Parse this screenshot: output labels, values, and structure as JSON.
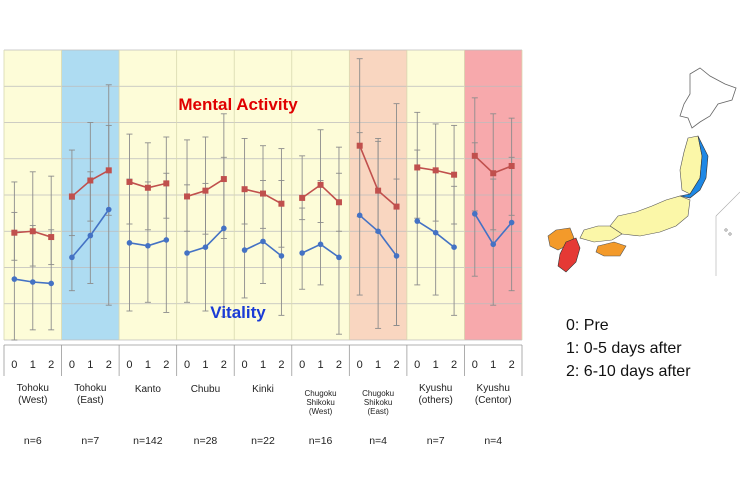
{
  "chart_data": {
    "type": "line",
    "ylim": [
      0,
      100
    ],
    "x_ticks": [
      "0",
      "1",
      "2"
    ],
    "series": [
      {
        "name": "Mental Activity",
        "color": "#c0504d"
      },
      {
        "name": "Vitality",
        "color": "#4472c4"
      }
    ],
    "regions": [
      {
        "label": "Tohoku (West)",
        "n": "n=6",
        "bg": "#fdfcd8",
        "mental": [
          37.0,
          37.5,
          35.5
        ],
        "mental_err": [
          [
            27.5,
            54.5
          ],
          [
            25.5,
            58.0
          ],
          [
            26.0,
            56.5
          ]
        ],
        "vitality": [
          21.0,
          20.0,
          19.5
        ],
        "vitality_err": [
          [
            0,
            44.0
          ],
          [
            3.5,
            39.5
          ],
          [
            3.5,
            38.0
          ]
        ]
      },
      {
        "label": "Tohoku (East)",
        "n": "n=7",
        "bg": "#aedcf2",
        "mental": [
          49.5,
          55.0,
          58.5
        ],
        "mental_err": [
          [
            36.0,
            65.5
          ],
          [
            41.0,
            75.0
          ],
          [
            43.0,
            88.0
          ]
        ],
        "vitality": [
          28.5,
          36.0,
          45.0
        ],
        "vitality_err": [
          [
            17.0,
            48.5
          ],
          [
            19.5,
            58.0
          ],
          [
            12.0,
            74.0
          ]
        ]
      },
      {
        "label": "Kanto",
        "n": "n=142",
        "bg": "#fdfcd8",
        "mental": [
          54.5,
          52.5,
          54.0
        ],
        "mental_err": [
          [
            40.0,
            71.0
          ],
          [
            38.0,
            68.0
          ],
          [
            42.0,
            70.0
          ]
        ],
        "vitality": [
          33.5,
          32.5,
          34.5
        ],
        "vitality_err": [
          [
            10.0,
            55.5
          ],
          [
            13.0,
            54.5
          ],
          [
            9.5,
            57.5
          ]
        ]
      },
      {
        "label": "Chubu",
        "n": "n=28",
        "bg": "#fdfcd8",
        "mental": [
          49.5,
          51.5,
          55.5
        ],
        "mental_err": [
          [
            37.5,
            69.0
          ],
          [
            36.5,
            70.0
          ],
          [
            35.0,
            78.0
          ]
        ],
        "vitality": [
          30.0,
          32.0,
          38.5
        ],
        "vitality_err": [
          [
            13.0,
            53.5
          ],
          [
            10.0,
            54.0
          ],
          [
            8.0,
            63.0
          ]
        ]
      },
      {
        "label": "Kinki",
        "n": "n=22",
        "bg": "#fdfcd8",
        "mental": [
          52.0,
          50.5,
          47.0
        ],
        "mental_err": [
          [
            40.0,
            69.5
          ],
          [
            38.5,
            67.0
          ],
          [
            32.0,
            66.0
          ]
        ],
        "vitality": [
          31.0,
          34.0,
          29.0
        ],
        "vitality_err": [
          [
            14.5,
            51.5
          ],
          [
            19.5,
            55.0
          ],
          [
            8.5,
            55.0
          ]
        ]
      },
      {
        "label": "Chugoku Shikoku (West)",
        "n": "n=16",
        "bg": "#fdfcd8",
        "mental": [
          49.0,
          53.5,
          47.5
        ],
        "mental_err": [
          [
            41.5,
            63.5
          ],
          [
            40.5,
            72.5
          ],
          [
            37.5,
            66.5
          ]
        ],
        "vitality": [
          30.0,
          33.0,
          28.5
        ],
        "vitality_err": [
          [
            17.5,
            45.5
          ],
          [
            19.0,
            55.0
          ],
          [
            2.0,
            57.5
          ]
        ]
      },
      {
        "label": "Chugoku Shikoku (East)",
        "n": "n=4",
        "bg": "#f9d6c0",
        "mental": [
          67.0,
          51.5,
          46.0
        ],
        "mental_err": [
          [
            42.5,
            97.0
          ],
          [
            37.0,
            69.5
          ],
          [
            5.0,
            81.5
          ]
        ],
        "vitality": [
          43.0,
          37.5,
          29.0
        ],
        "vitality_err": [
          [
            15.5,
            71.5
          ],
          [
            4.0,
            68.5
          ],
          [
            5.0,
            55.5
          ]
        ]
      },
      {
        "label": "Kyushu (others)",
        "n": "n=7",
        "bg": "#fdfcd8",
        "mental": [
          59.5,
          58.5,
          57.0
        ],
        "mental_err": [
          [
            42.0,
            78.5
          ],
          [
            41.0,
            74.5
          ],
          [
            40.0,
            74.0
          ]
        ],
        "vitality": [
          41.0,
          37.0,
          32.0
        ],
        "vitality_err": [
          [
            19.0,
            65.5
          ],
          [
            15.5,
            58.5
          ],
          [
            8.5,
            53.0
          ]
        ]
      },
      {
        "label": "Kyushu (Centor)",
        "n": "n=4",
        "bg": "#f7a9ac",
        "mental": [
          63.5,
          57.5,
          60.0
        ],
        "mental_err": [
          [
            44.5,
            83.5
          ],
          [
            38.0,
            78.0
          ],
          [
            43.0,
            76.5
          ]
        ],
        "vitality": [
          43.5,
          33.0,
          40.5
        ],
        "vitality_err": [
          [
            22.0,
            68.0
          ],
          [
            12.0,
            55.5
          ],
          [
            17.0,
            63.0
          ]
        ]
      }
    ]
  },
  "legend": [
    {
      "key": "0",
      "text": "0: Pre"
    },
    {
      "key": "1",
      "text": "1: 0-5 days after"
    },
    {
      "key": "2",
      "text": "2: 6-10 days after"
    }
  ],
  "map": {
    "base_color": "#fbf7a8",
    "highlight_colors": {
      "tohoku_east": "#1e88e5",
      "kyushu_center": "#e53935",
      "chugoku_shikoku_east": "#f39a2a"
    }
  }
}
